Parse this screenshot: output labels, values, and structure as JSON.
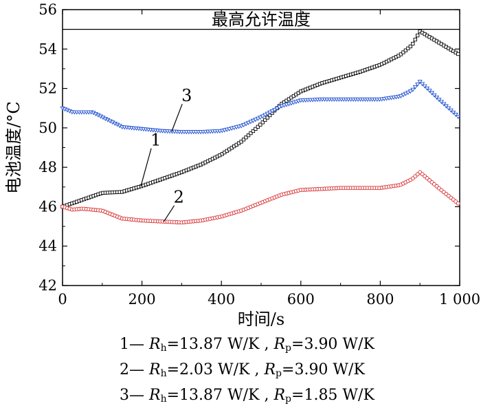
{
  "chart_data": {
    "type": "line",
    "xlabel": "时间/s",
    "ylabel": "电池温度/°C",
    "xlim": [
      0,
      1000
    ],
    "ylim": [
      42,
      56
    ],
    "xticks": [
      0,
      200,
      400,
      600,
      800,
      1000
    ],
    "xtick_labels": [
      "0",
      "200",
      "400",
      "600",
      "800",
      "1 000"
    ],
    "yticks": [
      42,
      44,
      46,
      48,
      50,
      52,
      54,
      56
    ],
    "grid": false,
    "reference_line": {
      "y": 55,
      "label": "最高允许温度"
    },
    "series": [
      {
        "name": "1",
        "color": "#000000",
        "marker": "square",
        "x": [
          0,
          50,
          100,
          150,
          200,
          250,
          300,
          350,
          400,
          450,
          500,
          550,
          600,
          650,
          700,
          750,
          800,
          850,
          880,
          900,
          950,
          1000
        ],
        "y": [
          46.0,
          46.35,
          46.7,
          46.75,
          47.05,
          47.4,
          47.75,
          48.15,
          48.65,
          49.3,
          50.2,
          51.2,
          51.85,
          52.25,
          52.55,
          52.85,
          53.2,
          53.7,
          54.2,
          54.9,
          54.3,
          53.7
        ]
      },
      {
        "name": "2",
        "color": "#d62728",
        "marker": "circle",
        "x": [
          0,
          25,
          50,
          75,
          100,
          150,
          200,
          250,
          300,
          350,
          400,
          450,
          500,
          550,
          600,
          650,
          700,
          750,
          800,
          850,
          880,
          900,
          950,
          1000
        ],
        "y": [
          46.0,
          45.85,
          45.9,
          45.85,
          45.8,
          45.4,
          45.3,
          45.25,
          45.2,
          45.3,
          45.5,
          45.8,
          46.2,
          46.6,
          46.85,
          46.9,
          46.95,
          46.95,
          46.95,
          47.1,
          47.4,
          47.75,
          46.9,
          46.1
        ]
      },
      {
        "name": "3",
        "color": "#1f4fd1",
        "marker": "triangle-down",
        "x": [
          0,
          25,
          50,
          75,
          100,
          150,
          200,
          250,
          300,
          350,
          400,
          450,
          500,
          550,
          600,
          650,
          700,
          750,
          800,
          850,
          880,
          900,
          950,
          1000
        ],
        "y": [
          51.0,
          50.8,
          50.8,
          50.8,
          50.55,
          50.05,
          49.95,
          49.85,
          49.8,
          49.8,
          49.85,
          50.1,
          50.55,
          51.1,
          51.4,
          51.45,
          51.45,
          51.45,
          51.45,
          51.6,
          51.9,
          52.35,
          51.4,
          50.5
        ]
      }
    ],
    "curve_labels": [
      {
        "text": "1",
        "x": 232,
        "y": 49.1
      },
      {
        "text": "2",
        "x": 290,
        "y": 46.2
      },
      {
        "text": "3",
        "x": 310,
        "y": 51.35
      }
    ]
  },
  "legend": [
    {
      "prefix": "1— ",
      "r1": "R",
      "s1": "h",
      "v1": "=13.87 W/K , ",
      "r2": "R",
      "s2": "p",
      "v2": "=3.90 W/K"
    },
    {
      "prefix": "2— ",
      "r1": "R",
      "s1": "h",
      "v1": "=2.03 W/K , ",
      "r2": "R",
      "s2": "p",
      "v2": "=3.90 W/K"
    },
    {
      "prefix": "3— ",
      "r1": "R",
      "s1": "h",
      "v1": "=13.87 W/K , ",
      "r2": "R",
      "s2": "p",
      "v2": "=1.85 W/K"
    }
  ]
}
